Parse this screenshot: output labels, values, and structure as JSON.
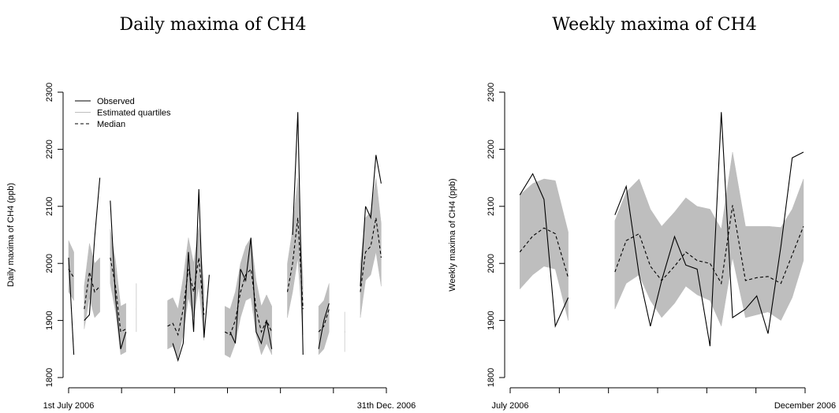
{
  "chart_data": [
    {
      "type": "line",
      "title": "Daily maxima of CH4",
      "ylabel": "Daily maxima of CH4 (ppb)",
      "x": [
        0,
        3,
        6,
        9,
        12,
        15,
        18,
        21,
        24,
        27,
        30,
        33,
        36,
        39,
        42,
        45,
        48,
        51,
        54,
        57,
        60,
        63,
        66,
        69,
        72,
        75,
        78,
        81,
        84,
        87,
        90,
        93,
        96,
        99,
        102,
        105,
        108,
        111,
        114,
        117,
        120,
        123,
        126,
        129,
        132,
        135,
        138,
        141,
        144,
        147,
        150,
        153,
        156,
        159,
        162,
        165,
        168,
        171,
        174,
        177,
        180,
        183
      ],
      "xlim": [
        0,
        183
      ],
      "ylim": [
        1780,
        2320
      ],
      "xticks": [
        {
          "value": 0,
          "label": "1st July 2006"
        },
        {
          "value": 183,
          "label": "31th Dec. 2006"
        }
      ],
      "xminor_ticks": [
        30.5,
        61,
        91.5,
        122,
        152.5
      ],
      "yticks": [
        1800,
        1900,
        2000,
        2100,
        2200,
        2300
      ],
      "legend": "top-left",
      "series": [
        {
          "name": "Estimated quartiles",
          "color": "#bebebe",
          "kind": "band",
          "lower": [
            1950,
            1935,
            null,
            1885,
            1940,
            1905,
            1915,
            null,
            1965,
            1915,
            1840,
            1845,
            null,
            1880,
            null,
            null,
            null,
            null,
            null,
            1850,
            1855,
            1835,
            1875,
            1940,
            1905,
            1960,
            1865,
            null,
            null,
            null,
            1840,
            1835,
            1860,
            1905,
            1935,
            1940,
            1875,
            1840,
            1860,
            1840,
            null,
            null,
            1905,
            1950,
            2010,
            1875,
            null,
            null,
            1840,
            1850,
            1880,
            null,
            null,
            1845,
            null,
            null,
            1905,
            1970,
            1980,
            2020,
            1960,
            null
          ],
          "upper": [
            2040,
            2020,
            null,
            1960,
            2035,
            2000,
            2010,
            null,
            2060,
            2005,
            1925,
            1930,
            null,
            1965,
            null,
            null,
            null,
            null,
            null,
            1935,
            1940,
            1920,
            1975,
            2045,
            2000,
            2065,
            1960,
            null,
            null,
            null,
            1925,
            1920,
            1950,
            2000,
            2030,
            2045,
            1970,
            1925,
            1945,
            1925,
            null,
            null,
            2000,
            2060,
            2150,
            1970,
            null,
            null,
            1925,
            1935,
            1965,
            null,
            null,
            1915,
            null,
            null,
            2000,
            2080,
            2090,
            2150,
            2070,
            null
          ]
        },
        {
          "name": "Median",
          "color": "#000000",
          "kind": "line",
          "dash": true,
          "values": [
            1990,
            1975,
            null,
            1920,
            1985,
            1950,
            1960,
            null,
            2010,
            1960,
            1880,
            1885,
            null,
            1920,
            null,
            null,
            null,
            null,
            null,
            1890,
            1895,
            1875,
            1920,
            1990,
            1950,
            2010,
            1910,
            null,
            null,
            null,
            1880,
            1875,
            1900,
            1950,
            1980,
            1990,
            1920,
            1880,
            1900,
            1880,
            null,
            null,
            1950,
            2000,
            2080,
            1920,
            null,
            null,
            1880,
            1890,
            1920,
            null,
            null,
            1880,
            null,
            null,
            1950,
            2020,
            2030,
            2080,
            2010,
            null
          ]
        },
        {
          "name": "Observed",
          "color": "#000000",
          "kind": "line",
          "dash": false,
          "values": [
            2010,
            1840,
            null,
            1900,
            1910,
            2045,
            2150,
            null,
            2110,
            1940,
            1850,
            1880,
            null,
            1900,
            null,
            null,
            null,
            null,
            null,
            null,
            1860,
            1830,
            1860,
            2020,
            1880,
            2130,
            1870,
            1980,
            null,
            null,
            null,
            1880,
            1860,
            1990,
            1970,
            2045,
            1880,
            1860,
            1900,
            1850,
            null,
            null,
            null,
            2050,
            2265,
            1840,
            null,
            null,
            1850,
            1900,
            1930,
            null,
            null,
            1870,
            null,
            null,
            1960,
            2100,
            2080,
            2190,
            2140,
            null
          ]
        }
      ]
    },
    {
      "type": "line",
      "title": "Weekly maxima of CH4",
      "ylabel": "Weekly maxima of CH4 (ppb)",
      "x": [
        6,
        14,
        21,
        28,
        36,
        43,
        50,
        58,
        65,
        72,
        80,
        87,
        94,
        102,
        109,
        116,
        124,
        131,
        138,
        146,
        153,
        160,
        168,
        175,
        182
      ],
      "xlim": [
        0,
        183
      ],
      "ylim": [
        1780,
        2320
      ],
      "xticks": [
        {
          "value": 0,
          "label": "July 2006"
        },
        {
          "value": 183,
          "label": "December 2006"
        }
      ],
      "xminor_ticks": [
        30.5,
        61,
        91.5,
        122,
        152.5
      ],
      "yticks": [
        1800,
        1900,
        2000,
        2100,
        2200,
        2300
      ],
      "series": [
        {
          "color": "#bebebe",
          "kind": "band",
          "lower": [
            1955,
            1980,
            1995,
            1990,
            1900,
            null,
            null,
            null,
            1920,
            1965,
            1980,
            1935,
            1905,
            1930,
            1960,
            1945,
            1935,
            1890,
            2010,
            1905,
            1910,
            1915,
            1900,
            1940,
            2005
          ],
          "upper": [
            2120,
            2140,
            2148,
            2145,
            2055,
            null,
            null,
            null,
            2075,
            2125,
            2148,
            2095,
            2065,
            2090,
            2115,
            2100,
            2095,
            2060,
            2195,
            2065,
            2065,
            2065,
            2063,
            2095,
            2148
          ]
        },
        {
          "color": "#000000",
          "kind": "line",
          "dash": true,
          "values": [
            2020,
            2048,
            2062,
            2052,
            1975,
            null,
            null,
            null,
            1985,
            2040,
            2052,
            1995,
            1970,
            1995,
            2020,
            2005,
            2000,
            1965,
            2102,
            1970,
            1975,
            1977,
            1965,
            2015,
            2065
          ]
        },
        {
          "color": "#000000",
          "kind": "line",
          "dash": false,
          "values": [
            2120,
            2157,
            2112,
            1890,
            1940,
            null,
            null,
            null,
            2085,
            2135,
            1980,
            1890,
            1970,
            2047,
            1997,
            1990,
            1855,
            2265,
            1905,
            1920,
            1943,
            1877,
            2030,
            2185,
            2195
          ]
        }
      ]
    }
  ]
}
